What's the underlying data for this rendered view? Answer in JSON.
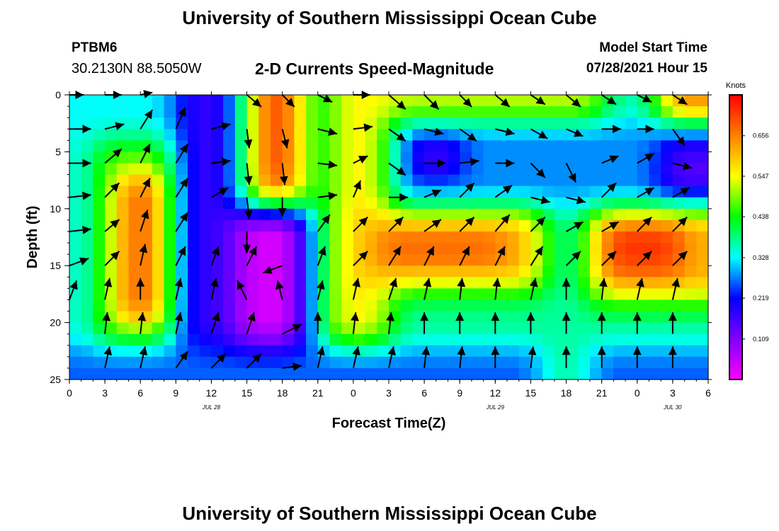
{
  "header": {
    "title": "University of Southern Mississippi Ocean Cube",
    "station_id": "PTBM6",
    "station_coords": "30.2130N  88.5050W",
    "subtitle": "2-D Currents Speed-Magnitude",
    "model_start_label": "Model Start Time",
    "model_start_value": "07/28/2021 Hour 15"
  },
  "footer": {
    "title": "University of Southern Mississippi Ocean Cube"
  },
  "chart_data": {
    "type": "heatmap",
    "xlabel": "Forecast Time(Z)",
    "ylabel": "Depth (ft)",
    "xlim": [
      0,
      54
    ],
    "ylim": [
      25,
      0
    ],
    "x_tick_values": [
      0,
      3,
      6,
      9,
      12,
      15,
      18,
      21,
      24,
      27,
      30,
      33,
      36,
      39,
      42,
      45,
      48,
      51,
      54
    ],
    "x_tick_labels": [
      "0",
      "3",
      "6",
      "9",
      "12",
      "15",
      "18",
      "21",
      "0",
      "3",
      "6",
      "9",
      "12",
      "15",
      "18",
      "21",
      "0",
      "3",
      "6"
    ],
    "y_tick_values": [
      0,
      5,
      10,
      15,
      20,
      25
    ],
    "y_tick_labels": [
      "0",
      "5",
      "10",
      "15",
      "20",
      "25"
    ],
    "date_labels": [
      {
        "text": "JUL 28",
        "x": 12
      },
      {
        "text": "JUL 29",
        "x": 36
      },
      {
        "text": "JUL 30",
        "x": 51
      }
    ],
    "colorbar": {
      "unit": "Knots",
      "ticks": [
        0.109,
        0.219,
        0.328,
        0.438,
        0.547,
        0.656
      ],
      "tick_labels": [
        "0.109",
        "0.219",
        "0.328",
        "0.438",
        "0.547",
        "0.656"
      ],
      "range": [
        0.0,
        0.766
      ],
      "colors": [
        "#ff00ff",
        "#8000ff",
        "#0000ff",
        "#00ffff",
        "#00ff00",
        "#ffff00",
        "#ff8000",
        "#ff0000"
      ]
    },
    "speed_regions": [
      {
        "x": [
          0,
          20
        ],
        "y": [
          0,
          25
        ],
        "value": 0.33
      },
      {
        "x": [
          20,
          54
        ],
        "y": [
          0,
          25
        ],
        "value": 0.38
      },
      {
        "x": [
          2,
          11
        ],
        "y": [
          4,
          22
        ],
        "value": 0.47
      },
      {
        "x": [
          4,
          8
        ],
        "y": [
          7,
          20
        ],
        "value": 0.68
      },
      {
        "x": [
          9.5,
          14
        ],
        "y": [
          0,
          25
        ],
        "value": 0.18
      },
      {
        "x": [
          14,
          20
        ],
        "y": [
          10,
          25
        ],
        "value": 0.04
      },
      {
        "x": [
          15,
          19.5
        ],
        "y": [
          0,
          10
        ],
        "value": 0.6
      },
      {
        "x": [
          16.5,
          18.5
        ],
        "y": [
          0,
          8
        ],
        "value": 0.71
      },
      {
        "x": [
          22.5,
          26.5
        ],
        "y": [
          0,
          25
        ],
        "value": 0.55
      },
      {
        "x": [
          24,
          40
        ],
        "y": [
          10,
          17
        ],
        "value": 0.6
      },
      {
        "x": [
          26,
          37
        ],
        "y": [
          12,
          15
        ],
        "value": 0.69
      },
      {
        "x": [
          27,
          45
        ],
        "y": [
          0,
          1.5
        ],
        "value": 0.56
      },
      {
        "x": [
          27,
          54
        ],
        "y": [
          2.5,
          9.5
        ],
        "value": 0.28
      },
      {
        "x": [
          29,
          33
        ],
        "y": [
          4,
          7
        ],
        "value": 0.14
      },
      {
        "x": [
          50,
          54
        ],
        "y": [
          4,
          9
        ],
        "value": 0.15
      },
      {
        "x": [
          44,
          54
        ],
        "y": [
          10,
          17.5
        ],
        "value": 0.6
      },
      {
        "x": [
          45,
          52
        ],
        "y": [
          11,
          16
        ],
        "value": 0.72
      },
      {
        "x": [
          50,
          54
        ],
        "y": [
          0,
          1.5
        ],
        "value": 0.7
      },
      {
        "x": [
          0,
          54
        ],
        "y": [
          22.5,
          25
        ],
        "value": 0.26
      },
      {
        "x": [
          40,
          44
        ],
        "y": [
          17,
          25
        ],
        "value": 0.37
      }
    ],
    "vectors": [
      {
        "x": 0,
        "y": 0,
        "u": 0.6,
        "v": 0.0
      },
      {
        "x": 3,
        "y": 0,
        "u": 0.7,
        "v": 0.0
      },
      {
        "x": 6,
        "y": 0,
        "u": 0.5,
        "v": 0.1
      },
      {
        "x": 15,
        "y": 0,
        "u": 0.6,
        "v": -0.5
      },
      {
        "x": 18,
        "y": 0,
        "u": 0.5,
        "v": -0.5
      },
      {
        "x": 21,
        "y": 0,
        "u": 0.6,
        "v": -0.3
      },
      {
        "x": 24,
        "y": 0,
        "u": 0.7,
        "v": 0.0
      },
      {
        "x": 27,
        "y": 0,
        "u": 0.7,
        "v": -0.6
      },
      {
        "x": 30,
        "y": 0,
        "u": 0.6,
        "v": -0.6
      },
      {
        "x": 33,
        "y": 0,
        "u": 0.5,
        "v": -0.5
      },
      {
        "x": 36,
        "y": 0,
        "u": 0.6,
        "v": -0.5
      },
      {
        "x": 39,
        "y": 0,
        "u": 0.6,
        "v": -0.4
      },
      {
        "x": 42,
        "y": 0,
        "u": 0.6,
        "v": -0.5
      },
      {
        "x": 45,
        "y": 0,
        "u": 0.6,
        "v": -0.4
      },
      {
        "x": 48,
        "y": 0,
        "u": 0.6,
        "v": -0.3
      },
      {
        "x": 51,
        "y": 0,
        "u": 0.6,
        "v": -0.4
      },
      {
        "x": 0,
        "y": 3,
        "u": 0.9,
        "v": 0.0
      },
      {
        "x": 3,
        "y": 3,
        "u": 0.8,
        "v": 0.2
      },
      {
        "x": 6,
        "y": 3,
        "u": 0.5,
        "v": 0.8
      },
      {
        "x": 9,
        "y": 3,
        "u": 0.4,
        "v": 0.9
      },
      {
        "x": 12,
        "y": 3,
        "u": 0.8,
        "v": 0.2
      },
      {
        "x": 15,
        "y": 3,
        "u": 0.1,
        "v": -0.8
      },
      {
        "x": 18,
        "y": 3,
        "u": 0.2,
        "v": -0.8
      },
      {
        "x": 21,
        "y": 3,
        "u": 0.8,
        "v": -0.2
      },
      {
        "x": 24,
        "y": 3,
        "u": 0.8,
        "v": 0.1
      },
      {
        "x": 27,
        "y": 3,
        "u": 0.7,
        "v": -0.5
      },
      {
        "x": 30,
        "y": 3,
        "u": 0.8,
        "v": -0.2
      },
      {
        "x": 33,
        "y": 3,
        "u": 0.7,
        "v": -0.5
      },
      {
        "x": 36,
        "y": 3,
        "u": 0.8,
        "v": -0.2
      },
      {
        "x": 39,
        "y": 3,
        "u": 0.7,
        "v": -0.4
      },
      {
        "x": 42,
        "y": 3,
        "u": 0.7,
        "v": -0.3
      },
      {
        "x": 45,
        "y": 3,
        "u": 0.8,
        "v": 0.0
      },
      {
        "x": 48,
        "y": 3,
        "u": 0.7,
        "v": 0.0
      },
      {
        "x": 51,
        "y": 3,
        "u": 0.5,
        "v": -0.7
      },
      {
        "x": 0,
        "y": 6,
        "u": 0.9,
        "v": 0.0
      },
      {
        "x": 3,
        "y": 6,
        "u": 0.7,
        "v": 0.6
      },
      {
        "x": 6,
        "y": 6,
        "u": 0.4,
        "v": 0.8
      },
      {
        "x": 9,
        "y": 6,
        "u": 0.5,
        "v": 0.8
      },
      {
        "x": 12,
        "y": 6,
        "u": 0.8,
        "v": 0.1
      },
      {
        "x": 15,
        "y": 6,
        "u": 0.1,
        "v": -0.9
      },
      {
        "x": 18,
        "y": 6,
        "u": 0.1,
        "v": -0.9
      },
      {
        "x": 21,
        "y": 6,
        "u": 0.8,
        "v": -0.1
      },
      {
        "x": 24,
        "y": 6,
        "u": 0.6,
        "v": 0.3
      },
      {
        "x": 27,
        "y": 6,
        "u": 0.7,
        "v": -0.5
      },
      {
        "x": 30,
        "y": 6,
        "u": 0.9,
        "v": 0.0
      },
      {
        "x": 33,
        "y": 6,
        "u": 0.8,
        "v": 0.1
      },
      {
        "x": 36,
        "y": 6,
        "u": 0.8,
        "v": 0.0
      },
      {
        "x": 39,
        "y": 6,
        "u": 0.6,
        "v": -0.6
      },
      {
        "x": 42,
        "y": 6,
        "u": 0.4,
        "v": -0.8
      },
      {
        "x": 45,
        "y": 6,
        "u": 0.7,
        "v": 0.3
      },
      {
        "x": 48,
        "y": 6,
        "u": 0.7,
        "v": 0.4
      },
      {
        "x": 51,
        "y": 6,
        "u": 0.8,
        "v": -0.2
      },
      {
        "x": 0,
        "y": 9,
        "u": 0.9,
        "v": 0.1
      },
      {
        "x": 3,
        "y": 9,
        "u": 0.6,
        "v": 0.6
      },
      {
        "x": 6,
        "y": 9,
        "u": 0.4,
        "v": 0.8
      },
      {
        "x": 9,
        "y": 9,
        "u": 0.5,
        "v": 0.8
      },
      {
        "x": 12,
        "y": 9,
        "u": 0.7,
        "v": 0.4
      },
      {
        "x": 15,
        "y": 9,
        "u": 0.1,
        "v": -0.9
      },
      {
        "x": 18,
        "y": 9,
        "u": 0.0,
        "v": -0.8
      },
      {
        "x": 21,
        "y": 9,
        "u": 0.8,
        "v": 0.1
      },
      {
        "x": 24,
        "y": 9,
        "u": 0.3,
        "v": 0.7
      },
      {
        "x": 27,
        "y": 9,
        "u": 0.8,
        "v": 0.0
      },
      {
        "x": 30,
        "y": 9,
        "u": 0.7,
        "v": 0.3
      },
      {
        "x": 33,
        "y": 9,
        "u": 0.6,
        "v": 0.6
      },
      {
        "x": 36,
        "y": 9,
        "u": 0.7,
        "v": 0.5
      },
      {
        "x": 39,
        "y": 9,
        "u": 0.8,
        "v": -0.2
      },
      {
        "x": 42,
        "y": 9,
        "u": 0.8,
        "v": -0.2
      },
      {
        "x": 45,
        "y": 9,
        "u": 0.6,
        "v": 0.6
      },
      {
        "x": 48,
        "y": 9,
        "u": 0.7,
        "v": 0.4
      },
      {
        "x": 51,
        "y": 9,
        "u": 0.7,
        "v": 0.4
      },
      {
        "x": 0,
        "y": 12,
        "u": 0.9,
        "v": 0.1
      },
      {
        "x": 3,
        "y": 12,
        "u": 0.6,
        "v": 0.5
      },
      {
        "x": 6,
        "y": 12,
        "u": 0.3,
        "v": 0.9
      },
      {
        "x": 9,
        "y": 12,
        "u": 0.5,
        "v": 0.8
      },
      {
        "x": 15,
        "y": 12,
        "u": 0.0,
        "v": -0.9
      },
      {
        "x": 21,
        "y": 12,
        "u": 0.5,
        "v": 0.7
      },
      {
        "x": 24,
        "y": 12,
        "u": 0.6,
        "v": 0.6
      },
      {
        "x": 27,
        "y": 12,
        "u": 0.6,
        "v": 0.6
      },
      {
        "x": 30,
        "y": 12,
        "u": 0.7,
        "v": 0.5
      },
      {
        "x": 33,
        "y": 12,
        "u": 0.6,
        "v": 0.6
      },
      {
        "x": 36,
        "y": 12,
        "u": 0.6,
        "v": 0.7
      },
      {
        "x": 39,
        "y": 12,
        "u": 0.6,
        "v": 0.6
      },
      {
        "x": 42,
        "y": 12,
        "u": 0.7,
        "v": 0.4
      },
      {
        "x": 45,
        "y": 12,
        "u": 0.7,
        "v": 0.4
      },
      {
        "x": 48,
        "y": 12,
        "u": 0.6,
        "v": 0.6
      },
      {
        "x": 51,
        "y": 12,
        "u": 0.6,
        "v": 0.6
      },
      {
        "x": 0,
        "y": 15,
        "u": 0.8,
        "v": 0.3
      },
      {
        "x": 3,
        "y": 15,
        "u": 0.6,
        "v": 0.6
      },
      {
        "x": 6,
        "y": 15,
        "u": 0.2,
        "v": 0.9
      },
      {
        "x": 9,
        "y": 15,
        "u": 0.4,
        "v": 0.8
      },
      {
        "x": 12,
        "y": 15,
        "u": 0.3,
        "v": 0.8
      },
      {
        "x": 15,
        "y": 15,
        "u": 0.4,
        "v": 0.8
      },
      {
        "x": 18,
        "y": 15,
        "u": -0.8,
        "v": -0.3
      },
      {
        "x": 21,
        "y": 15,
        "u": 0.3,
        "v": 0.8
      },
      {
        "x": 24,
        "y": 15,
        "u": 0.6,
        "v": 0.6
      },
      {
        "x": 27,
        "y": 15,
        "u": 0.5,
        "v": 0.8
      },
      {
        "x": 30,
        "y": 15,
        "u": 0.4,
        "v": 0.8
      },
      {
        "x": 33,
        "y": 15,
        "u": 0.4,
        "v": 0.8
      },
      {
        "x": 36,
        "y": 15,
        "u": 0.4,
        "v": 0.8
      },
      {
        "x": 39,
        "y": 15,
        "u": 0.5,
        "v": 0.8
      },
      {
        "x": 42,
        "y": 15,
        "u": 0.6,
        "v": 0.6
      },
      {
        "x": 45,
        "y": 15,
        "u": 0.6,
        "v": 0.6
      },
      {
        "x": 48,
        "y": 15,
        "u": 0.6,
        "v": 0.6
      },
      {
        "x": 51,
        "y": 15,
        "u": 0.6,
        "v": 0.6
      },
      {
        "x": 0,
        "y": 18,
        "u": 0.3,
        "v": 0.8
      },
      {
        "x": 3,
        "y": 18,
        "u": 0.2,
        "v": 0.9
      },
      {
        "x": 6,
        "y": 18,
        "u": 0.0,
        "v": 0.9
      },
      {
        "x": 9,
        "y": 18,
        "u": 0.2,
        "v": 0.9
      },
      {
        "x": 12,
        "y": 18,
        "u": 0.2,
        "v": 0.9
      },
      {
        "x": 15,
        "y": 18,
        "u": -0.4,
        "v": 0.8
      },
      {
        "x": 18,
        "y": 18,
        "u": -0.2,
        "v": 0.8
      },
      {
        "x": 21,
        "y": 18,
        "u": 0.2,
        "v": 0.8
      },
      {
        "x": 24,
        "y": 18,
        "u": 0.2,
        "v": 0.9
      },
      {
        "x": 27,
        "y": 18,
        "u": 0.3,
        "v": 0.9
      },
      {
        "x": 30,
        "y": 18,
        "u": 0.2,
        "v": 0.9
      },
      {
        "x": 33,
        "y": 18,
        "u": 0.1,
        "v": 0.9
      },
      {
        "x": 36,
        "y": 18,
        "u": 0.1,
        "v": 0.9
      },
      {
        "x": 39,
        "y": 18,
        "u": 0.2,
        "v": 0.9
      },
      {
        "x": 42,
        "y": 18,
        "u": 0.0,
        "v": 0.9
      },
      {
        "x": 45,
        "y": 18,
        "u": 0.1,
        "v": 0.9
      },
      {
        "x": 48,
        "y": 18,
        "u": 0.2,
        "v": 0.9
      },
      {
        "x": 51,
        "y": 18,
        "u": 0.2,
        "v": 0.9
      },
      {
        "x": 3,
        "y": 21,
        "u": 0.1,
        "v": 0.9
      },
      {
        "x": 6,
        "y": 21,
        "u": 0.1,
        "v": 0.9
      },
      {
        "x": 9,
        "y": 21,
        "u": 0.2,
        "v": 0.9
      },
      {
        "x": 12,
        "y": 21,
        "u": 0.3,
        "v": 0.9
      },
      {
        "x": 15,
        "y": 21,
        "u": 0.3,
        "v": 0.9
      },
      {
        "x": 18,
        "y": 21,
        "u": 0.8,
        "v": 0.4
      },
      {
        "x": 21,
        "y": 21,
        "u": 0.0,
        "v": 0.9
      },
      {
        "x": 24,
        "y": 21,
        "u": 0.1,
        "v": 0.9
      },
      {
        "x": 27,
        "y": 21,
        "u": 0.1,
        "v": 0.9
      },
      {
        "x": 30,
        "y": 21,
        "u": 0.0,
        "v": 0.9
      },
      {
        "x": 33,
        "y": 21,
        "u": 0.0,
        "v": 0.9
      },
      {
        "x": 36,
        "y": 21,
        "u": 0.0,
        "v": 0.9
      },
      {
        "x": 39,
        "y": 21,
        "u": 0.0,
        "v": 0.9
      },
      {
        "x": 42,
        "y": 21,
        "u": 0.0,
        "v": 0.9
      },
      {
        "x": 45,
        "y": 21,
        "u": 0.0,
        "v": 0.9
      },
      {
        "x": 48,
        "y": 21,
        "u": 0.0,
        "v": 0.9
      },
      {
        "x": 51,
        "y": 21,
        "u": 0.0,
        "v": 0.9
      },
      {
        "x": 3,
        "y": 24,
        "u": 0.2,
        "v": 0.9
      },
      {
        "x": 6,
        "y": 24,
        "u": 0.2,
        "v": 0.9
      },
      {
        "x": 9,
        "y": 24,
        "u": 0.5,
        "v": 0.7
      },
      {
        "x": 12,
        "y": 24,
        "u": 0.6,
        "v": 0.6
      },
      {
        "x": 15,
        "y": 24,
        "u": 0.6,
        "v": 0.6
      },
      {
        "x": 18,
        "y": 24,
        "u": 0.8,
        "v": 0.1
      },
      {
        "x": 21,
        "y": 24,
        "u": 0.2,
        "v": 0.9
      },
      {
        "x": 24,
        "y": 24,
        "u": 0.2,
        "v": 0.9
      },
      {
        "x": 27,
        "y": 24,
        "u": 0.2,
        "v": 0.9
      },
      {
        "x": 30,
        "y": 24,
        "u": 0.1,
        "v": 0.9
      },
      {
        "x": 33,
        "y": 24,
        "u": 0.1,
        "v": 0.9
      },
      {
        "x": 36,
        "y": 24,
        "u": 0.0,
        "v": 0.9
      },
      {
        "x": 39,
        "y": 24,
        "u": 0.1,
        "v": 0.9
      },
      {
        "x": 42,
        "y": 24,
        "u": 0.0,
        "v": 0.9
      },
      {
        "x": 45,
        "y": 24,
        "u": 0.0,
        "v": 0.9
      },
      {
        "x": 48,
        "y": 24,
        "u": 0.0,
        "v": 0.9
      },
      {
        "x": 51,
        "y": 24,
        "u": 0.0,
        "v": 0.9
      }
    ]
  }
}
